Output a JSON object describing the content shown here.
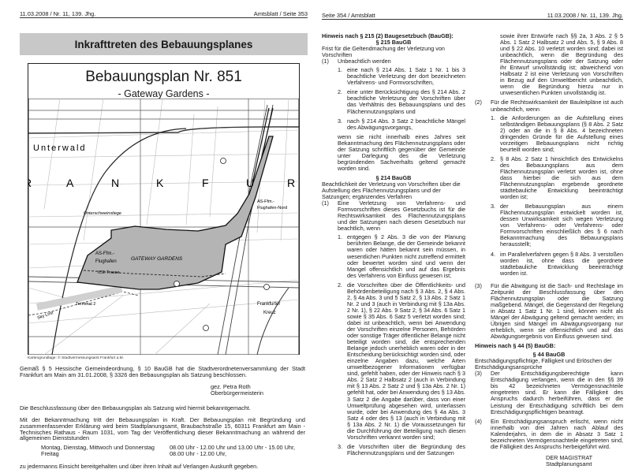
{
  "left_page": {
    "header_left": "11.03.2008 / Nr. 11, 139. Jhg.",
    "header_right": "Amtsblatt / Seite 353",
    "title": "Inkrafttreten des Bebauungsplanes",
    "plan": {
      "title": "Bebauungsplan Nr. 851",
      "subtitle": "- Gateway Gardens -",
      "map_labels": {
        "unterwald": "Unterwald",
        "frankfurt_letters": [
          "R",
          "A",
          "N",
          "K",
          "F",
          "U",
          "R"
        ],
        "unterschweinstiege": "Unterschweinstiege",
        "as_nord_1": "AS-Ffm.-",
        "as_nord_2": "Flughafen-Nord",
        "as_1": "AS-Ffm.-",
        "as_2": "Flughafen",
        "gateway": "GATEWAY GARDENS",
        "ice": "ICE-Trasse",
        "terminal": "Terminal 2",
        "skyline": "Sky Line",
        "kreuz_1": "Frankfurter",
        "kreuz_2": "Kreuz"
      },
      "caption": "Kartengrundlage: © Stadtvermessungsamt Frankfurt a.M."
    },
    "para1": "Gemäß § 5 Hessische Gemeindeordnung, § 10 BauGB hat die Stadtverordnetenversammlung der Stadt Frankfurt am Main am 31.01.2008, § 3326 den Bebauungsplan als Satzung beschlossen.",
    "signature": [
      "gez. Petra Roth",
      "Oberbürgermeisterin"
    ],
    "para2": "Die Beschlussfassung über den Bebauungsplan als Satzung wird hiermit bekanntgemacht.",
    "para3": "Mit der Bekanntmachung tritt der Bebauungsplan in Kraft. Der Bebauungsplan mit Begründung und zusammenfassender Erklärung wird beim Stadtplanungsamt, Braubachstraße 15, 60311 Frankfurt am Main - Technisches Rathaus - Raum 1031, vom Tag der Veröffentlichung dieser Bekanntmachung an während der allgemeinen Dienststunden",
    "hours": [
      {
        "days": "Montag, Dienstag, Mittwoch und Donnerstag",
        "time": "08.00 Uhr - 12.00 Uhr und 13.00 Uhr - 15.00 Uhr,"
      },
      {
        "days": "Freitag",
        "time": "08.00 Uhr - 12.00 Uhr,"
      }
    ],
    "closing": "zu jedermanns Einsicht bereitgehalten und über ihren Inhalt auf Verlangen Auskunft gegeben."
  },
  "right_page": {
    "header_left": "Seite 354 / Amtsblatt",
    "header_right": "11.03.2008 / Nr. 11, 139. Jhg.",
    "col1": {
      "heading": "Hinweis nach § 215 (2) Baugesetzbuch (BauGB):",
      "s215_title": "§ 215 BauGB",
      "s215_sub": "Frist für die Geltendmachung der Verletzung von Vorschriften",
      "s215_p1_label": "(1)",
      "s215_p1_text": "Unbeachtlich werden",
      "s215_items": [
        {
          "n": "1.",
          "t": "eine nach § 214 Abs. 1 Satz 1 Nr. 1 bis 3 beachtliche Verletzung der dort bezeichneten Verfahrens- und Formvorschriften,"
        },
        {
          "n": "2.",
          "t": "eine unter Berücksichtigung des § 214 Abs. 2 beachtliche Verletzung der Vorschriften über das Verhältnis des Bebauungsplans und des Flächennutzungsplans und"
        },
        {
          "n": "3.",
          "t": "nach § 214 Abs. 3 Satz 2 beachtliche Mängel des Abwägungsvorgangs,"
        }
      ],
      "s215_tail": "wenn sie nicht innerhalb eines Jahres seit Bekanntmachung des Flächennutzungsplans oder der Satzung schriftlich gegenüber der Gemeinde unter Darlegung des die Verletzung begründenden Sachverhalts geltend gemacht worden sind.",
      "s214_title": "§ 214 BauGB",
      "s214_sub": "Beachtlichkeit der Verletzung von Vorschriften über die Aufstellung des Flächennutzungsplans und der Satzungen; ergänzendes Verfahren",
      "s214_p1_label": "(1)",
      "s214_p1_text": "Eine Verletzung von Verfahrens- und Formvorschriften dieses Gesetzbuchs ist für die Rechtswirksamkeit des Flächennutzungsplans und der Satzungen nach diesem Gesetzbuch nur beachtlich, wenn",
      "s214_items": [
        {
          "n": "1.",
          "t": "entgegen § 2 Abs. 3 die von der Planung berührten Belange, die der Gemeinde bekannt waren oder hätten bekannt sein müssen, in wesentlichen Punkten nicht zutreffend ermittelt oder bewertet worden sind und wenn der Mangel offensichtlich und auf das Ergebnis des Verfahrens von Einfluss gewesen ist;"
        },
        {
          "n": "2.",
          "t": "die Vorschriften über die Öffentlichkeits- und Behördenbeteiligung nach § 3 Abs. 2, § 4 Abs. 2, § 4a Abs. 3 und 5 Satz 2, § 13 Abs. 2 Satz 1 Nr. 2 und 3 (auch in Verbindung mit § 13a Abs. 2 Nr. 1), § 22 Abs. 9 Satz 2, § 34 Abs. 6 Satz 1 sowie § 35 Abs. 6 Satz 5 verletzt worden sind; dabei ist unbeachtlich, wenn bei Anwendung der Vorschriften einzelne Personen, Behörden oder sonstige Träger öffentlicher Belange nicht beteiligt worden sind, die entsprechenden Belange jedoch unerheblich waren oder in der Entscheidung berücksichtigt worden sind, oder einzelne Angaben dazu, welche Arten umweltbezogener Informationen verfügbar sind, gefehlt haben, oder der Hinweis nach § 3 Abs. 2 Satz 2 Halbsatz 2 (auch in Verbindung mit § 13 Abs. 2 Satz 2 und § 13a Abs. 2 Nr. 1) gefehlt hat, oder bei Anwendung des § 13 Abs. 3 Satz 2 die Angabe darüber, dass von einer Umweltprüfung abgesehen wird, unterlassen wurde, oder bei Anwendung des § 4a Abs. 3 Satz 4 oder des § 13 (auch in Verbindung mit § 13a Abs. 2 Nr. 1) die Voraussetzungen für die Durchführung der Beteiligung nach diesen Vorschriften verkannt worden sind;"
        },
        {
          "n": "3.",
          "t": "die Vorschriften über die Begründung des Flächennutzungsplans und der Satzungen"
        }
      ]
    },
    "col2": {
      "continuation": "sowie ihrer Entwürfe nach §§ 2a, 3 Abs. 2 § 5 Abs. 1 Satz 2 Halbsatz 2 und Abs. 5, § 9 Abs. 8 und § 22 Abs. 10 verletzt worden sind; dabei ist unbeachtlich, wenn die Begründung des Flächennutzungsplans oder der Satzung oder ihr Entwurf unvollständig ist; abweichend von Halbsatz 2 ist eine Verletzung von Vorschriften in Bezug auf den Umweltbericht unbeachtlich, wenn die Begründung hierzu nur in unwesentlichen Punkten unvollständig ist.",
      "p2_label": "(2)",
      "p2_text": "Für die Rechtswirksamkeit der Bauleitpläne ist auch unbeachtlich, wenn",
      "p2_items": [
        {
          "n": "1.",
          "t": "die Anforderungen an die Aufstellung eines selbständigen Bebauungsplans (§ 8 Abs. 2 Satz 2) oder an die in § 8 Abs. 4 bezeichneten dringenden Gründe für die Aufstellung eines vorzeitigen Bebauungsplans nicht richtig beurteilt worden sind;"
        },
        {
          "n": "2.",
          "t": "§ 8 Abs. 2 Satz 1 hinsichtlich des Entwickelns des Bebauungsplans aus dem Flächennutzungsplan verletzt worden ist, ohne dass hierbei die sich aus dem Flächennutzungsplan ergebende geordnete städtebauliche Entwicklung beeinträchtigt worden ist;"
        },
        {
          "n": "3.",
          "t": "der Bebauungsplan aus einem Flächennutzungsplan entwickelt worden ist, dessen Unwirksamkeit sich wegen Verletzung von Verfahrens- oder Verfahrens- oder Formvorschriften einschließlich des § 6 nach Bekanntmachung des Bebauungsplans herausstellt;"
        },
        {
          "n": "4.",
          "t": "im Parallelverfahren gegen § 8 Abs. 3 verstoßen worden ist, ohne dass die geordnete städtebauliche Entwicklung beeinträchtigt worden ist."
        }
      ],
      "p3_label": "(3)",
      "p3_text": "Für die Abwägung ist die Sach- und Rechtslage im Zeitpunkt der Beschlussfassung über den Flächennutzungsplan oder die Satzung maßgebend. Mängel, die Gegenstand der Regelung in Absatz 1 Satz 1 Nr. 1 sind, können nicht als Mängel der Abwägung geltend gemacht werden; im Übrigen sind Mängel im Abwägungsvorgang nur erheblich, wenn sie offensichtlich und auf das Abwägungsergebnis von Einfluss gewesen sind.",
      "heading44": "Hinweis nach § 44 (5) BauGB:",
      "s44_title": "§ 44 BauGB",
      "s44_sub": "Entschädigungspflichtige, Fälligkeit und Erlöschen der Entschädigungsansprüche",
      "s44_p3_label": "(3)",
      "s44_p3_text": "Der Entschädigungsberechtigte kann Entschädigung verlangen, wenn die in den §§ 39 bis 42 bezeichneten Vermögensnachteile eingetreten sind. Er kann die Fälligkeit des Anspruchs dadurch herbeiführen, dass er die Leistung der Entschädigung schriftlich bei dem Entschädigungspflichtigen beantragt.",
      "s44_p4_label": "(4)",
      "s44_p4_text": "Ein Entschädigungsanspruch erlischt, wenn nicht innerhalb von drei Jahren nach Ablauf des Kalenderjahrs, in dem die in Absatz 3 Satz 1 bezeichneten Vermögensnachteile eingetreten sind, die Fälligkeit des Anspruchs herbeigeführt wird.",
      "signature": [
        "DER MAGISTRAT",
        "Stadtplanungsamt"
      ]
    }
  },
  "colors": {
    "title_bar": "#c8c8c8",
    "plan_area": "#b4b4b4",
    "text": "#1a1a1a"
  }
}
